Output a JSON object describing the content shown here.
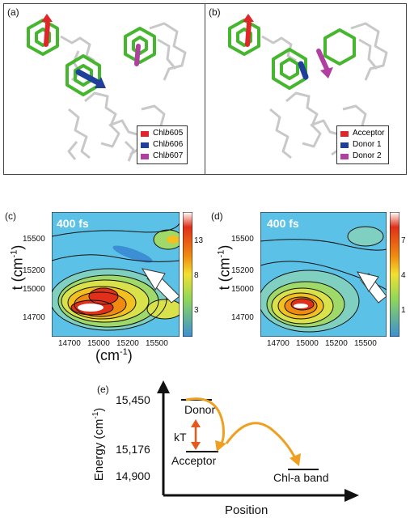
{
  "panels": {
    "a": {
      "label": "(a)",
      "legend": [
        {
          "text": "Chl",
          "italic": "b",
          "num": " 605",
          "color": "#e0262b"
        },
        {
          "text": "Chl",
          "italic": "b",
          "num": " 606",
          "color": "#1f3f9a"
        },
        {
          "text": "Chl",
          "italic": "b",
          "num": " 607",
          "color": "#b13fa0"
        }
      ]
    },
    "b": {
      "label": "(b)",
      "legend": [
        {
          "text": "Acceptor",
          "color": "#e0262b"
        },
        {
          "text": "Donor 1",
          "color": "#1f3f9a"
        },
        {
          "text": "Donor 2",
          "color": "#b13fa0"
        }
      ]
    },
    "c": {
      "label": "(c)",
      "overlay": "400 fs",
      "ylabel": "t (cm-1)",
      "xlabel": "(cm-1)",
      "yticks": [
        "15500",
        "15200",
        "15000",
        "14700"
      ],
      "xticks": [
        "14700",
        "15000",
        "15200",
        "15500"
      ],
      "colorbar_ticks": [
        "13",
        "8",
        "3"
      ]
    },
    "d": {
      "label": "(d)",
      "overlay": "400 fs",
      "ylabel": "t (cm-1)",
      "yticks": [
        "15500",
        "15200",
        "15000",
        "14700"
      ],
      "xticks": [
        "14700",
        "15000",
        "15200",
        "15500"
      ],
      "colorbar_ticks": [
        "7",
        "4",
        "1"
      ]
    },
    "e": {
      "label": "(e)",
      "ylabel": "Energy (cm-1)",
      "xlabel": "Position",
      "levels": [
        "15,450",
        "15,176",
        "14,900"
      ],
      "donor_label": "Donor",
      "acceptor_label": "Acceptor",
      "kt_label": "kT",
      "chla_label": "Chl-a band"
    }
  },
  "colors": {
    "chlorophyll_green": "#45b62e",
    "protein_gray": "#c8c8c8",
    "arrow_orange": "#f0a020",
    "kt_arrow": "#e55a1c"
  }
}
